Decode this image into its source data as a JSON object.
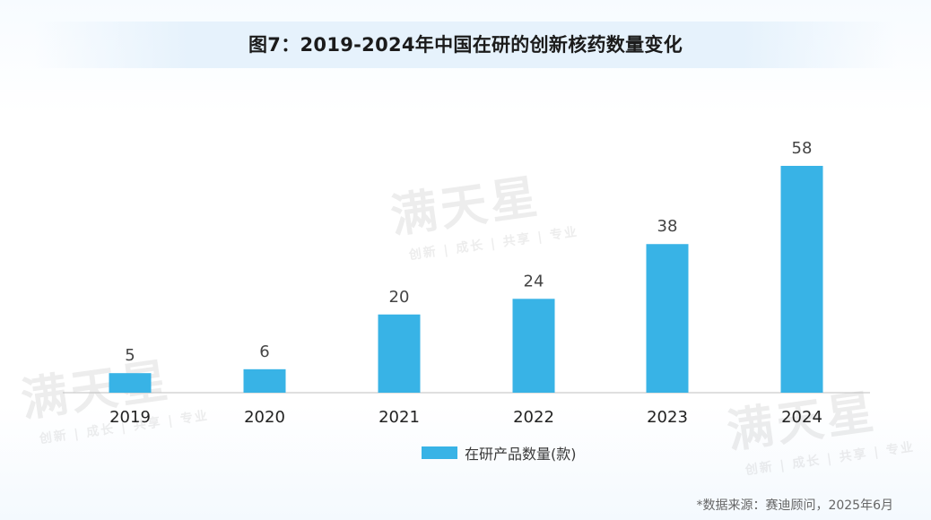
{
  "title": "图7：2019-2024年中国在研的创新核药数量变化",
  "source": "*数据来源：赛迪顾问，2025年6月",
  "watermark": {
    "main": "满天星",
    "sub": "创新 | 成长 | 共享 | 专业"
  },
  "colors": {
    "bar": "#38b3e6",
    "title_band": "#e6f2fc",
    "axis": "#bfbfbf"
  },
  "chart_data": {
    "type": "bar",
    "title": "图7：2019-2024年中国在研的创新核药数量变化",
    "categories": [
      "2019",
      "2020",
      "2021",
      "2022",
      "2023",
      "2024"
    ],
    "series": [
      {
        "name": "在研产品数量(款)",
        "values": [
          5,
          6,
          20,
          24,
          38,
          58
        ]
      }
    ],
    "data_labels": [
      "5",
      "6",
      "20",
      "24",
      "38",
      "58"
    ],
    "xlabel": "",
    "ylabel": "",
    "ylim": [
      0,
      58
    ],
    "grid": false,
    "legend_position": "bottom-center"
  }
}
